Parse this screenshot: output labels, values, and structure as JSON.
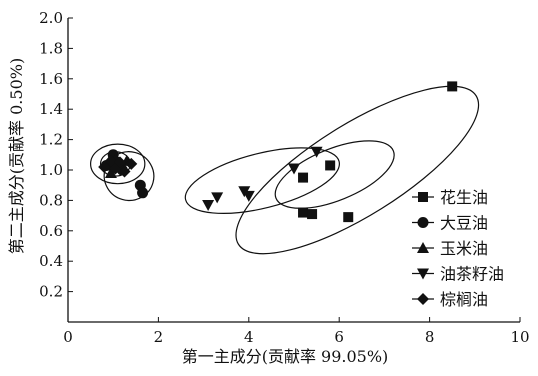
{
  "chart_data": {
    "type": "scatter",
    "xlabel": "第一主成分(贡献率 99.05%)",
    "ylabel": "第二主成分(贡献率 0.50%)",
    "xlim": [
      0,
      10
    ],
    "ylim": [
      0,
      2.0
    ],
    "x_ticks": [
      "0",
      "2",
      "4",
      "6",
      "8",
      "10"
    ],
    "y_ticks": [
      "0.2",
      "0.4",
      "0.6",
      "0.8",
      "1.0",
      "1.2",
      "1.4",
      "1.6",
      "1.8",
      "2.0"
    ],
    "legend_position": "right",
    "grid": false,
    "series": [
      {
        "name": "花生油",
        "marker": "square",
        "points": [
          [
            8.5,
            1.55
          ],
          [
            5.8,
            1.03
          ],
          [
            5.2,
            0.95
          ],
          [
            5.2,
            0.72
          ],
          [
            5.4,
            0.71
          ],
          [
            6.2,
            0.69
          ]
        ]
      },
      {
        "name": "大豆油",
        "marker": "circle",
        "points": [
          [
            1.1,
            1.05
          ],
          [
            1.6,
            0.9
          ],
          [
            1.65,
            0.85
          ],
          [
            1.0,
            1.1
          ],
          [
            0.85,
            1.03
          ],
          [
            1.2,
            1.0
          ]
        ]
      },
      {
        "name": "玉米油",
        "marker": "triangle-up",
        "points": [
          [
            0.9,
            1.05
          ],
          [
            1.05,
            1.07
          ],
          [
            1.2,
            1.02
          ],
          [
            0.95,
            0.98
          ],
          [
            1.3,
            1.06
          ]
        ]
      },
      {
        "name": "油茶籽油",
        "marker": "triangle-down",
        "points": [
          [
            3.1,
            0.77
          ],
          [
            3.3,
            0.82
          ],
          [
            3.9,
            0.86
          ],
          [
            4.0,
            0.83
          ],
          [
            5.0,
            1.01
          ],
          [
            5.5,
            1.12
          ]
        ]
      },
      {
        "name": "棕榈油",
        "marker": "diamond",
        "points": [
          [
            0.8,
            1.02
          ],
          [
            0.95,
            1.06
          ],
          [
            1.05,
            1.01
          ],
          [
            1.15,
            1.05
          ],
          [
            1.4,
            1.04
          ],
          [
            1.25,
            0.99
          ]
        ]
      }
    ],
    "ellipses": [
      {
        "cx": 1.1,
        "cy": 1.04,
        "rx": 0.6,
        "ry": 0.13,
        "angle": 0
      },
      {
        "cx": 1.35,
        "cy": 0.96,
        "rx": 0.55,
        "ry": 0.16,
        "angle": -15
      },
      {
        "cx": 1.05,
        "cy": 1.04,
        "rx": 0.33,
        "ry": 0.08,
        "angle": 0
      },
      {
        "cx": 4.3,
        "cy": 0.93,
        "rx": 1.75,
        "ry": 0.18,
        "angle": 14
      },
      {
        "cx": 6.4,
        "cy": 1.0,
        "rx": 3.1,
        "ry": 0.3,
        "angle": 32
      },
      {
        "cx": 5.9,
        "cy": 0.97,
        "rx": 1.4,
        "ry": 0.17,
        "angle": 22
      }
    ]
  }
}
